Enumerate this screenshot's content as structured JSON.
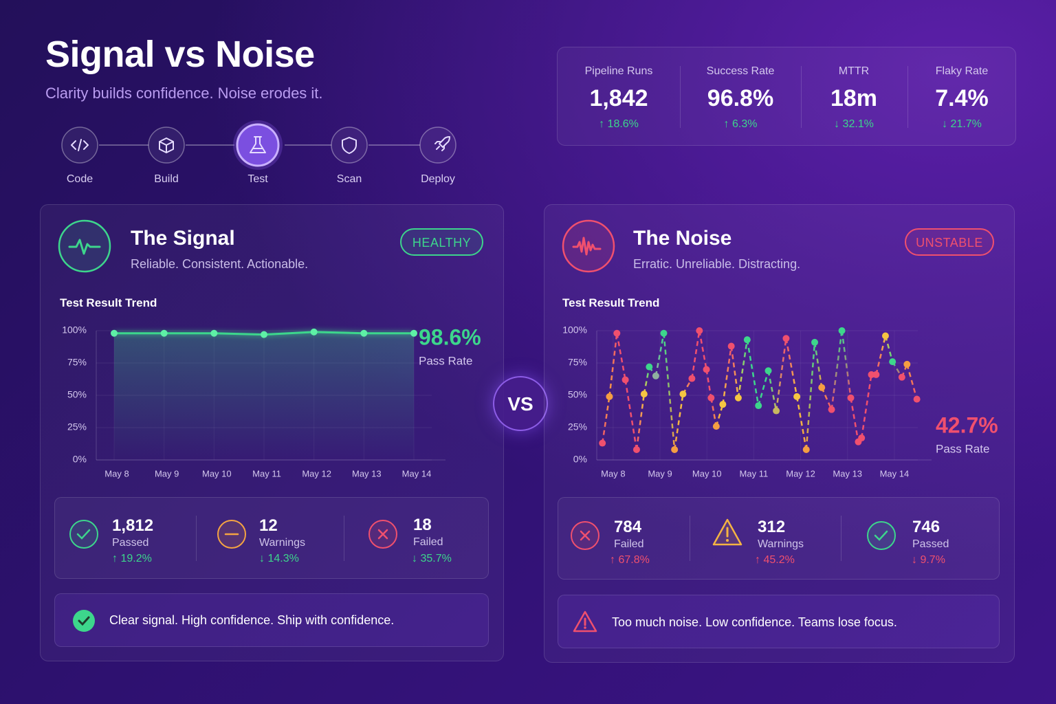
{
  "header": {
    "title": "Signal vs Noise",
    "subtitle": "Clarity builds confidence. Noise erodes it."
  },
  "pipeline": {
    "steps": [
      "Code",
      "Build",
      "Test",
      "Scan",
      "Deploy"
    ],
    "active_step": 2
  },
  "kpis": [
    {
      "label": "Pipeline Runs",
      "value": "1,842",
      "change": "↑ 18.6%"
    },
    {
      "label": "Success Rate",
      "value": "96.8%",
      "change": "↑ 6.3%"
    },
    {
      "label": "MTTR",
      "value": "18m",
      "change": "↓ 32.1%"
    },
    {
      "label": "Flaky Rate",
      "value": "7.4%",
      "change": "↓ 21.7%"
    }
  ],
  "vs": "VS",
  "panels": [
    {
      "title": "The Signal",
      "subtitle": "Reliable. Consistent. Actionable.",
      "badge": "HEALTHY",
      "stats": [
        {
          "value": "1,812",
          "label": "Passed",
          "change": "↑ 19.2%"
        },
        {
          "value": "12",
          "label": "Warnings",
          "change": "↓ 14.3%"
        },
        {
          "value": "18",
          "label": "Failed",
          "change": "↓ 35.7%"
        }
      ],
      "footer": "Clear signal. High confidence. Ship with confidence."
    },
    {
      "title": "The Noise",
      "subtitle": "Erratic. Unreliable. Distracting.",
      "badge": "UNSTABLE",
      "stats": [
        {
          "value": "784",
          "label": "Failed",
          "change": "↑ 67.8%"
        },
        {
          "value": "312",
          "label": "Warnings",
          "change": "↑ 45.2%"
        },
        {
          "value": "746",
          "label": "Passed",
          "change": "↓ 9.7%"
        }
      ],
      "footer": "Too much noise. Low confidence. Teams lose focus."
    }
  ],
  "chart_data": [
    {
      "type": "line",
      "title": "Test Result Trend",
      "categories": [
        "May 8",
        "May 9",
        "May 10",
        "May 11",
        "May 12",
        "May 13",
        "May 14"
      ],
      "values": [
        98,
        98,
        98,
        97,
        99,
        98,
        98
      ],
      "color": "#3dd68c",
      "ylim": [
        0,
        100
      ],
      "yticks": [
        {
          "value": 0,
          "label": "0%"
        },
        {
          "value": 25,
          "label": "25%"
        },
        {
          "value": 50,
          "label": "50%"
        },
        {
          "value": 75,
          "label": "75%"
        },
        {
          "value": 100,
          "label": "100%"
        }
      ],
      "grid": true,
      "annotation": "98.6%",
      "annotation_label": "Pass Rate",
      "annotation_color": "#3dd68c"
    },
    {
      "type": "line",
      "title": "Test Result Trend",
      "x": [
        7.77,
        7.92,
        8.08,
        8.26,
        8.5,
        8.66,
        8.77,
        8.91,
        9.08,
        9.31,
        9.49,
        9.68,
        9.84,
        9.99,
        10.09,
        10.2,
        10.34,
        10.52,
        10.67,
        10.86,
        11.1,
        11.31,
        11.48,
        11.69,
        11.92,
        12.12,
        12.3,
        12.45,
        12.66,
        12.88,
        13.07,
        13.23,
        13.3,
        13.51,
        13.61,
        13.81,
        13.96,
        14.16,
        14.27,
        14.48
      ],
      "values": [
        13,
        49,
        98,
        62,
        8,
        51,
        72,
        65,
        98,
        8,
        51,
        63,
        100,
        70,
        48,
        26,
        43,
        88,
        48,
        93,
        42,
        69,
        38,
        94,
        49,
        8,
        91,
        56,
        39,
        100,
        48,
        14,
        17,
        66,
        66,
        96,
        76,
        64,
        74,
        47
      ],
      "point_colors": [
        "#f0506e",
        "#f59e42",
        "#f0506e",
        "#f0506e",
        "#f0506e",
        "#f5c542",
        "#3dd68c",
        "#8fb0a0",
        "#3dd68c",
        "#f59e42",
        "#f5c542",
        "#f0506e",
        "#f0506e",
        "#f0506e",
        "#f0506e",
        "#f59e42",
        "#f5c542",
        "#f0506e",
        "#f5c542",
        "#3dd68c",
        "#3dd68c",
        "#3dd68c",
        "#c8b860",
        "#f0506e",
        "#f5c542",
        "#f59e42",
        "#3dd68c",
        "#f59e42",
        "#f0506e",
        "#3dd68c",
        "#f0506e",
        "#f0506e",
        "#f0506e",
        "#f0506e",
        "#f0506e",
        "#f5c542",
        "#3dd68c",
        "#f0506e",
        "#f59e42",
        "#f0506e"
      ],
      "xlim": [
        7.65,
        14.5
      ],
      "xticks": [
        {
          "value": 8,
          "label": "May 8"
        },
        {
          "value": 9,
          "label": "May 9"
        },
        {
          "value": 10,
          "label": "May 10"
        },
        {
          "value": 11,
          "label": "May 11"
        },
        {
          "value": 12,
          "label": "May 12"
        },
        {
          "value": 13,
          "label": "May 13"
        },
        {
          "value": 14,
          "label": "May 14"
        }
      ],
      "ylim": [
        0,
        100
      ],
      "yticks": [
        {
          "value": 0,
          "label": "0%"
        },
        {
          "value": 25,
          "label": "25%"
        },
        {
          "value": 50,
          "label": "50%"
        },
        {
          "value": 75,
          "label": "75%"
        },
        {
          "value": 100,
          "label": "100%"
        }
      ],
      "grid": true,
      "dashed": true,
      "annotation": "42.7%",
      "annotation_label": "Pass Rate",
      "annotation_color": "#f0506e"
    }
  ]
}
